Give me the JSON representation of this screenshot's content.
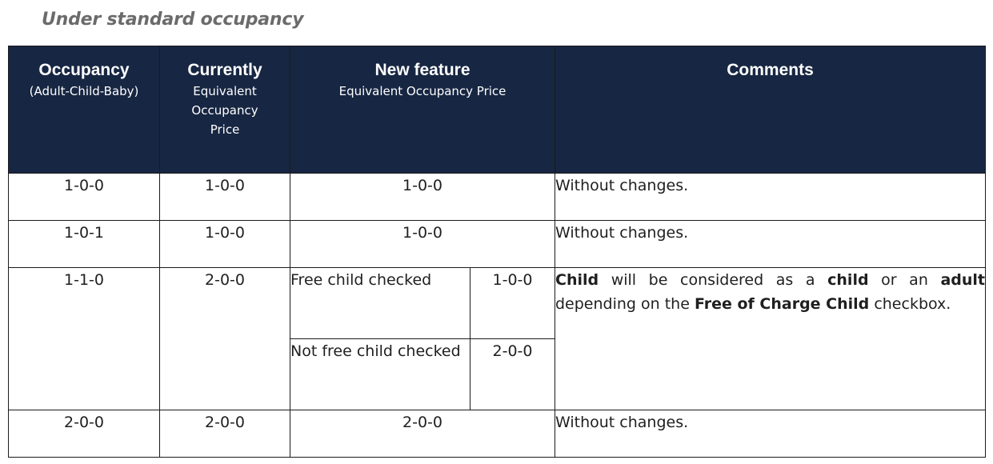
{
  "heading": "Under standard occupancy",
  "header": {
    "occupancy": {
      "title": "Occupancy",
      "sub": "(Adult-Child-Baby)"
    },
    "currently": {
      "title": "Currently",
      "sub": "Equivalent Occupancy Price"
    },
    "new_feature": {
      "title": "New feature",
      "sub": "Equivalent Occupancy Price"
    },
    "comments": {
      "title": "Comments"
    }
  },
  "rows": [
    {
      "occupancy": "1-0-0",
      "currently": "1-0-0",
      "new_feature": "1-0-0",
      "comment": "Without changes."
    },
    {
      "occupancy": "1-0-1",
      "currently": "1-0-0",
      "new_feature": "1-0-0",
      "comment": "Without changes."
    },
    {
      "occupancy": "1-1-0",
      "currently": "2-0-0",
      "options": [
        {
          "label": "Free child checked",
          "value": "1-0-0"
        },
        {
          "label": "Not free child checked",
          "value": "2-0-0"
        }
      ],
      "comment_parts": [
        "Child",
        " will be considered as a ",
        "child",
        " or an ",
        "adult",
        " depending on the ",
        "Free of Charge Child",
        " checkbox."
      ]
    },
    {
      "occupancy": "2-0-0",
      "currently": "2-0-0",
      "new_feature": "2-0-0",
      "comment": "Without changes."
    }
  ]
}
